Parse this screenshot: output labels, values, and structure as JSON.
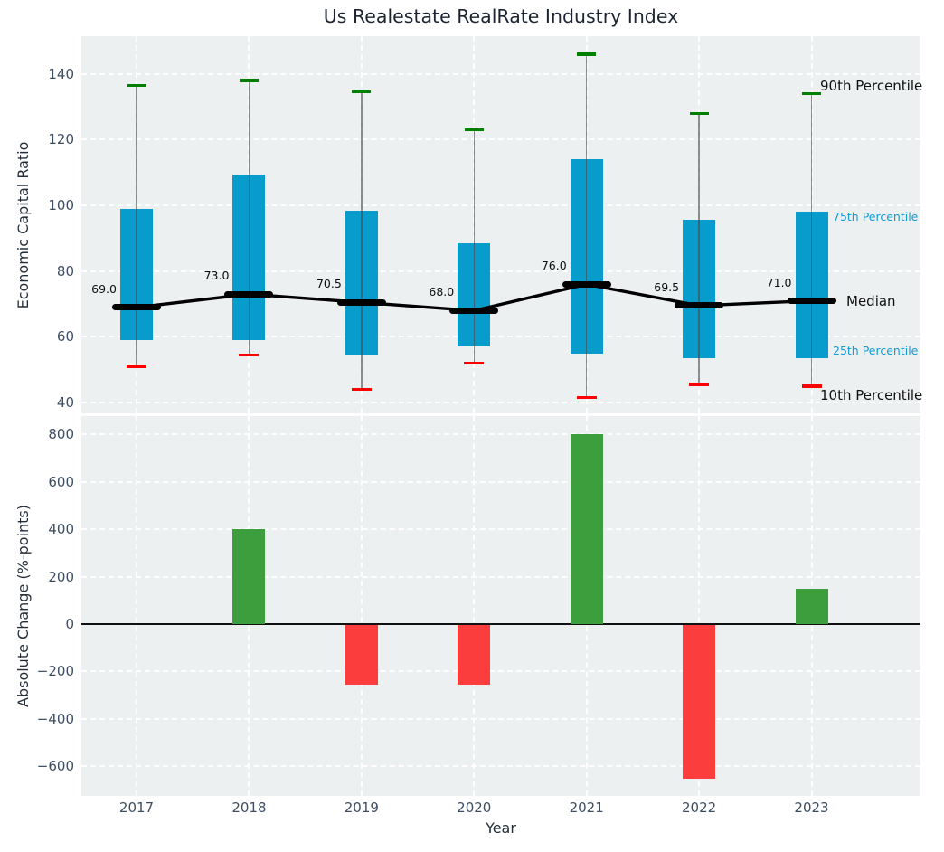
{
  "figure": {
    "title": "Us Realestate RealRate Industry Index",
    "xlabel": "Year",
    "top_ylabel": "Economic Capital Ratio",
    "bottom_ylabel": "Absolute Change (%-points)"
  },
  "annotations": {
    "p90": "90th Percentile",
    "p75": "75th Percentile",
    "median": "Median",
    "p25": "25th Percentile",
    "p10": "10th Percentile"
  },
  "colors": {
    "box_blue": "#089ccd",
    "bar_positive_green": "#3d9e3e",
    "bar_negative_red": "#fb3d3d",
    "cap_90th_green": "#007f00",
    "cap_10th_red": "#fe0000",
    "median_black": "#000000",
    "panel_background": "#edf0f1",
    "gridline_white": "#ffffff",
    "tick_text": "#3d4e63",
    "blue_label_text": "#129bd5"
  },
  "chart_data": [
    {
      "type": "box-percentile",
      "title": "Us Realestate RealRate Industry Index",
      "ylabel": "Economic Capital Ratio",
      "categories": [
        "2017",
        "2018",
        "2019",
        "2020",
        "2021",
        "2022",
        "2023"
      ],
      "series": [
        {
          "name": "10th Percentile",
          "values": [
            51,
            54.5,
            44,
            52,
            41.5,
            45.5,
            45
          ]
        },
        {
          "name": "25th Percentile",
          "values": [
            59,
            59,
            54.5,
            57,
            55,
            53.5,
            53.5
          ]
        },
        {
          "name": "Median",
          "values": [
            69,
            73,
            70.5,
            68,
            76,
            69.5,
            71
          ]
        },
        {
          "name": "75th Percentile",
          "values": [
            99,
            109.5,
            98.5,
            88.5,
            114,
            95.5,
            98
          ]
        },
        {
          "name": "90th Percentile",
          "values": [
            136.5,
            138,
            134.5,
            123,
            146,
            128,
            134
          ]
        }
      ],
      "median_labels": [
        "69.0",
        "73.0",
        "70.5",
        "68.0",
        "76.0",
        "69.5",
        "71.0"
      ],
      "ytick_values": [
        140,
        120,
        100,
        80,
        60,
        40
      ],
      "ylim": [
        36.75,
        151.47
      ],
      "grid": true,
      "legend_position": "right-annotations"
    },
    {
      "type": "bar",
      "ylabel": "Absolute Change (%-points)",
      "xlabel": "Year",
      "categories": [
        "2017",
        "2018",
        "2019",
        "2020",
        "2021",
        "2022",
        "2023"
      ],
      "values": [
        null,
        400,
        -250,
        -250,
        800,
        -650,
        150
      ],
      "ytick_values": [
        800,
        600,
        400,
        200,
        0,
        -200,
        -400,
        -600
      ],
      "ylim": [
        -724.5,
        877
      ],
      "grid": true
    }
  ]
}
